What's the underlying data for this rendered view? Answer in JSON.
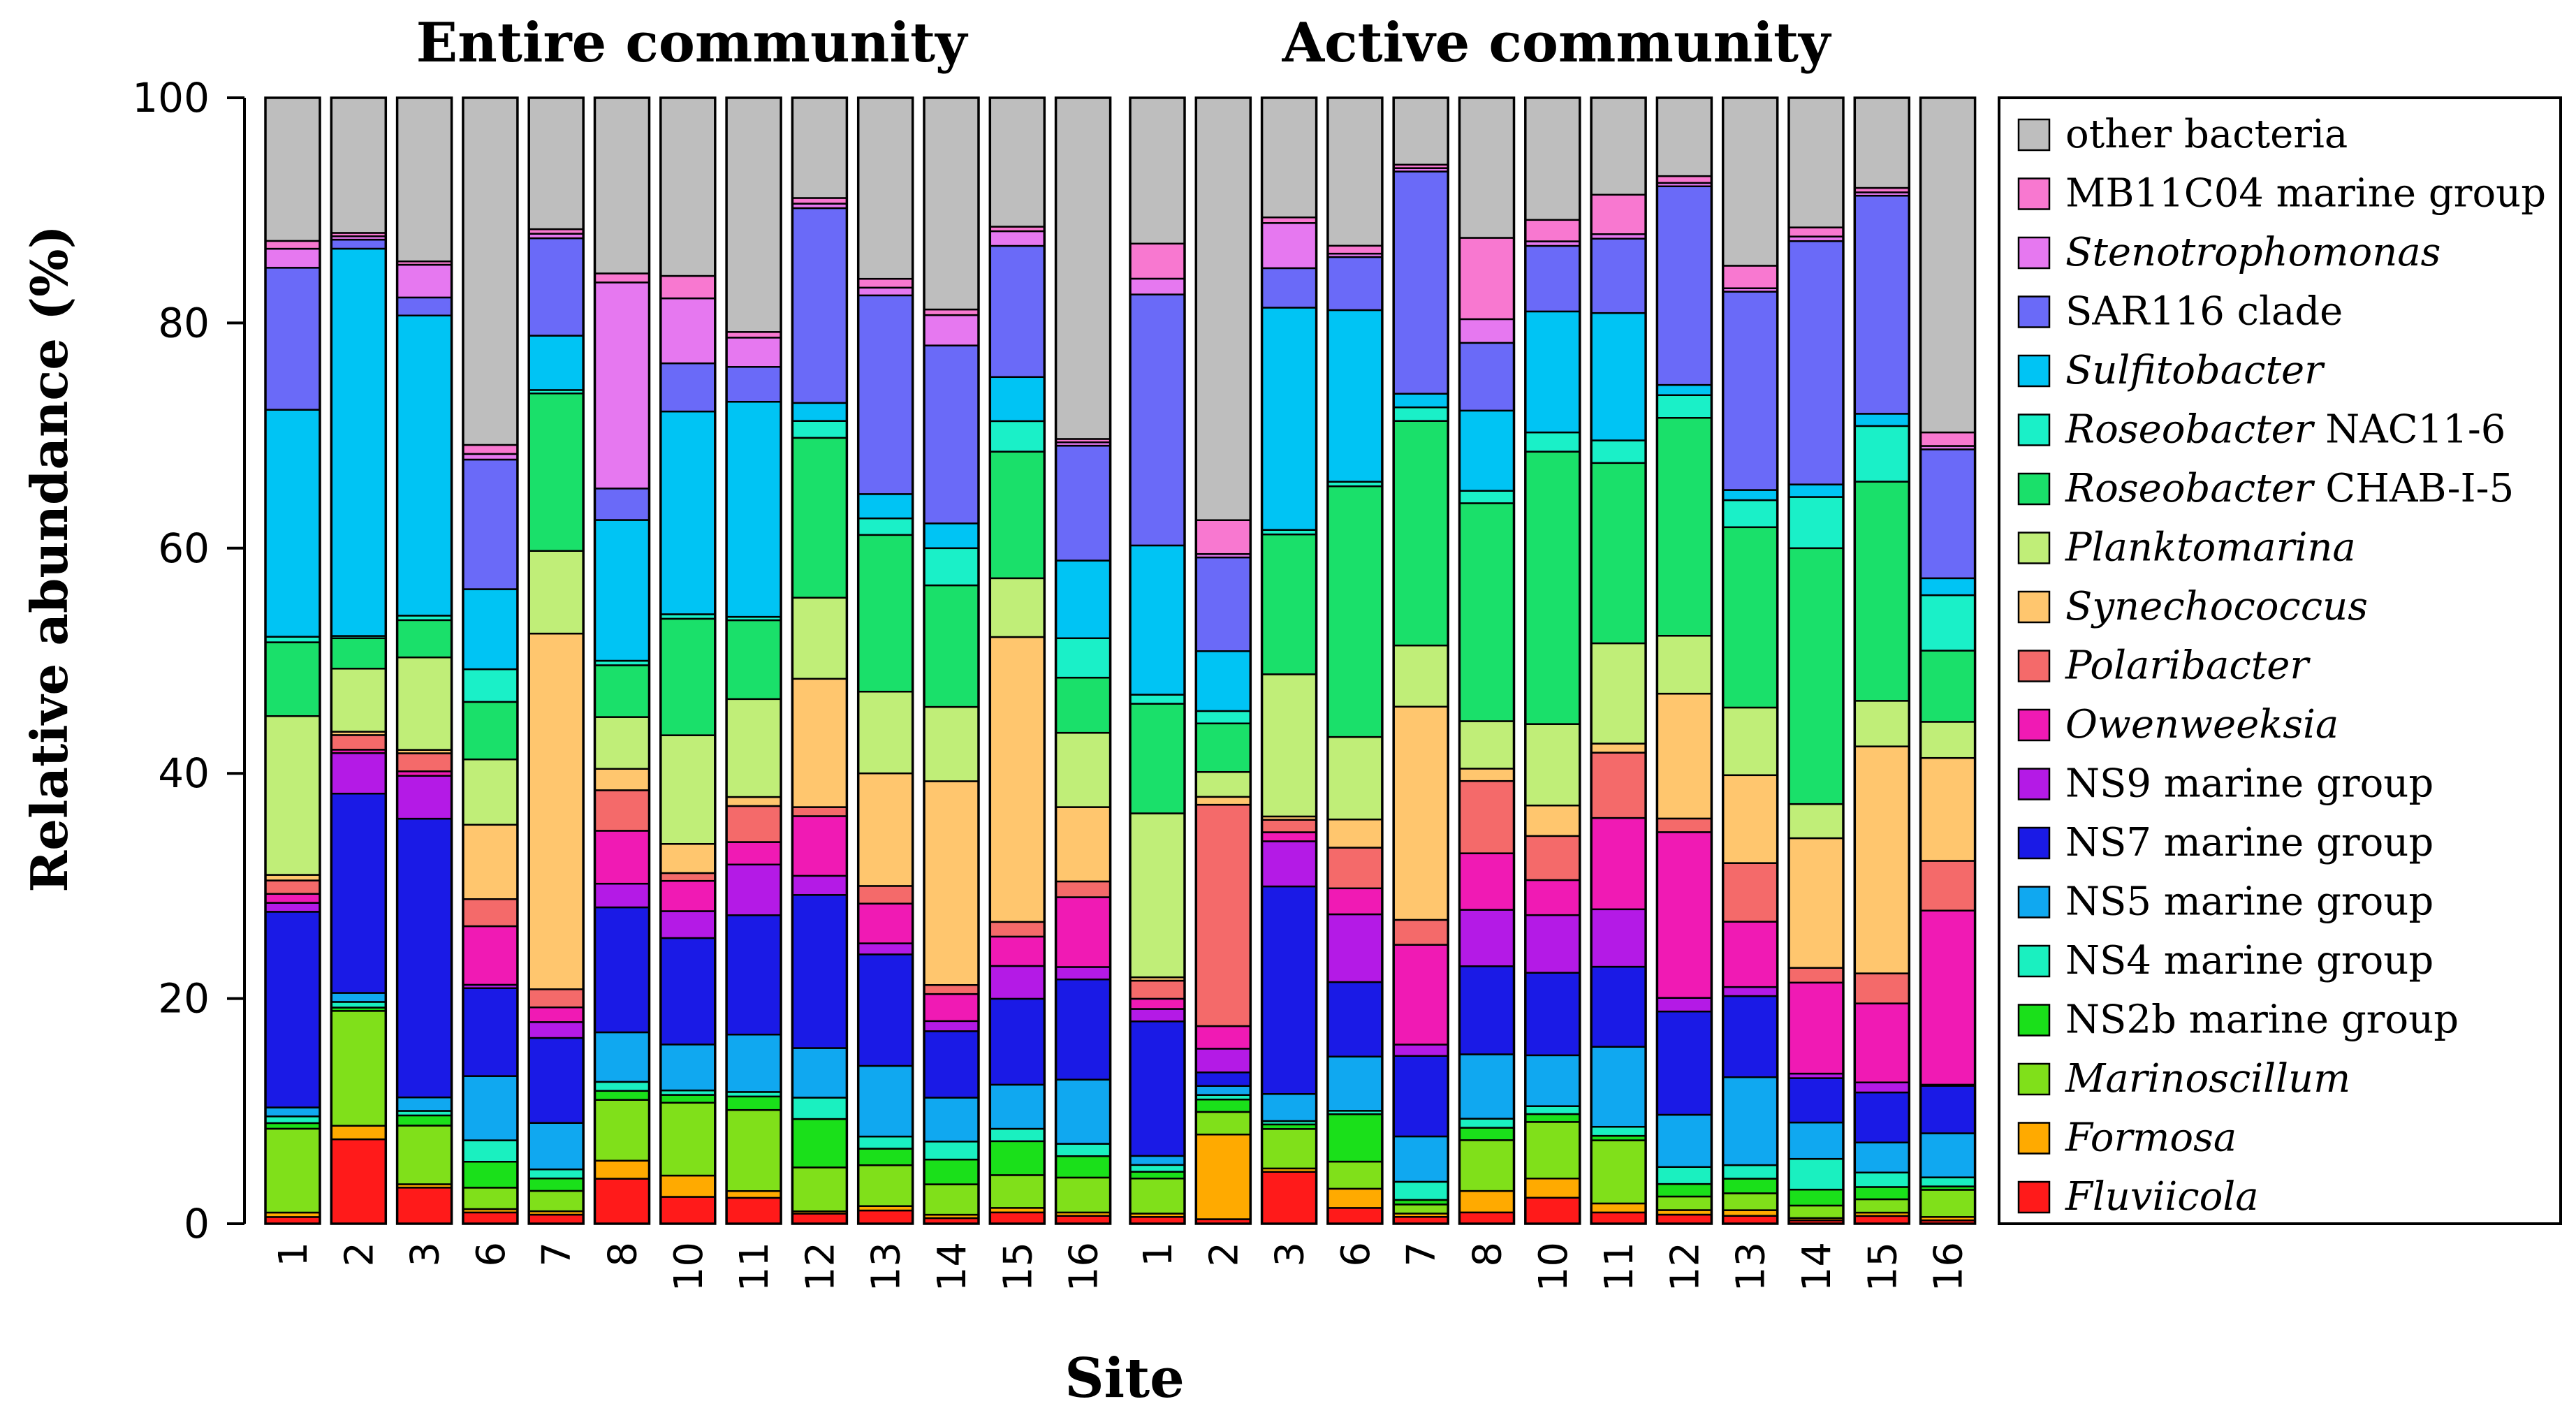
{
  "chart_data": {
    "type": "bar",
    "stacked": true,
    "ylabel": "Relative abundance (%)",
    "xlabel": "Site",
    "ylim": [
      0,
      100
    ],
    "yticks": [
      0,
      20,
      40,
      60,
      80,
      100
    ],
    "panels": [
      {
        "title": "Entire community",
        "categories": [
          "1",
          "2",
          "3",
          "6",
          "7",
          "8",
          "10",
          "11",
          "12",
          "13",
          "14",
          "15",
          "16"
        ]
      },
      {
        "title": "Active community",
        "categories": [
          "1",
          "2",
          "3",
          "6",
          "7",
          "8",
          "10",
          "11",
          "12",
          "13",
          "14",
          "15",
          "16"
        ]
      }
    ],
    "series": [
      {
        "name": "Fluviicola",
        "italic": true,
        "prefix": "",
        "suffix": "",
        "color": "#ff1a1a"
      },
      {
        "name": "Formosa",
        "italic": true,
        "prefix": "",
        "suffix": "",
        "color": "#ffaa00"
      },
      {
        "name": "Marinoscillum",
        "italic": true,
        "prefix": "",
        "suffix": "",
        "color": "#80e01a"
      },
      {
        "name": "NS2b marine group",
        "italic": false,
        "prefix": "",
        "suffix": "",
        "color": "#1ae01a"
      },
      {
        "name": "NS4 marine group",
        "italic": false,
        "prefix": "",
        "suffix": "",
        "color": "#1af0c0"
      },
      {
        "name": "NS5 marine group",
        "italic": false,
        "prefix": "",
        "suffix": "",
        "color": "#10a8f0"
      },
      {
        "name": "NS7 marine group",
        "italic": false,
        "prefix": "",
        "suffix": "",
        "color": "#1a1ae6"
      },
      {
        "name": "NS9 marine group",
        "italic": false,
        "prefix": "",
        "suffix": "",
        "color": "#b41ae6"
      },
      {
        "name": "Owenweeksia",
        "italic": true,
        "prefix": "",
        "suffix": "",
        "color": "#f01ab4"
      },
      {
        "name": "Polaribacter",
        "italic": true,
        "prefix": "",
        "suffix": "",
        "color": "#f46a6a"
      },
      {
        "name": "Synechococcus",
        "italic": true,
        "prefix": "",
        "suffix": "",
        "color": "#ffc66e"
      },
      {
        "name": "Planktomarina",
        "italic": true,
        "prefix": "",
        "suffix": "",
        "color": "#c0ee78"
      },
      {
        "name": "CHAB-I-5",
        "italic": false,
        "prefix": "Roseobacter",
        "suffix": " CHAB-I-5",
        "color": "#1ae06a"
      },
      {
        "name": "NAC11-6",
        "italic": false,
        "prefix": "Roseobacter",
        "suffix": " NAC11-6",
        "color": "#1af0c8"
      },
      {
        "name": "Sulfitobacter",
        "italic": true,
        "prefix": "",
        "suffix": "",
        "color": "#00c4f4"
      },
      {
        "name": "SAR116 clade",
        "italic": false,
        "prefix": "",
        "suffix": "",
        "color": "#6a6af8"
      },
      {
        "name": "Stenotrophomonas",
        "italic": true,
        "prefix": "",
        "suffix": "",
        "color": "#e678f0"
      },
      {
        "name": "MB11C04 marine group",
        "italic": false,
        "prefix": "",
        "suffix": "",
        "color": "#f878d0"
      },
      {
        "name": "other bacteria",
        "italic": false,
        "prefix": "",
        "suffix": "",
        "color": "#bebebe"
      }
    ],
    "bars": [
      {
        "panel": 0,
        "site": "1",
        "values": [
          0.6,
          0.4,
          7.5,
          0.5,
          0.6,
          0.8,
          17.5,
          0.8,
          0.8,
          1.2,
          0.5,
          14.2,
          6.6,
          0.5,
          20.3,
          12.7,
          1.7,
          0.7,
          12.8
        ]
      },
      {
        "panel": 0,
        "site": "2",
        "values": [
          7.5,
          1.2,
          10.2,
          0.3,
          0.5,
          0.8,
          17.7,
          3.6,
          0.3,
          1.3,
          0.3,
          5.6,
          2.7,
          0.2,
          34.4,
          0.8,
          0.3,
          0.3,
          12.0
        ]
      },
      {
        "panel": 0,
        "site": "3",
        "values": [
          3.2,
          0.3,
          5.2,
          0.9,
          0.4,
          1.2,
          24.7,
          3.8,
          0.4,
          1.6,
          0.3,
          8.2,
          3.3,
          0.4,
          26.6,
          1.6,
          2.9,
          0.3,
          14.5
        ]
      },
      {
        "panel": 0,
        "site": "6",
        "values": [
          1.0,
          0.3,
          1.9,
          2.3,
          1.9,
          5.7,
          7.8,
          0.3,
          5.2,
          2.4,
          6.6,
          5.8,
          5.1,
          2.9,
          7.1,
          11.5,
          0.5,
          0.8,
          30.8
        ]
      },
      {
        "panel": 0,
        "site": "7",
        "values": [
          0.8,
          0.3,
          1.8,
          1.1,
          0.8,
          4.1,
          7.5,
          1.4,
          1.3,
          1.6,
          31.4,
          7.3,
          13.9,
          0.3,
          4.8,
          8.6,
          0.4,
          0.4,
          11.6
        ]
      },
      {
        "panel": 0,
        "site": "8",
        "values": [
          4.0,
          1.6,
          5.4,
          0.8,
          0.8,
          4.4,
          11.1,
          2.1,
          4.7,
          3.6,
          1.9,
          4.6,
          4.6,
          0.4,
          12.5,
          2.8,
          18.3,
          0.8,
          15.6
        ]
      },
      {
        "panel": 0,
        "site": "10",
        "values": [
          2.4,
          1.9,
          6.5,
          0.7,
          0.4,
          4.1,
          9.5,
          2.4,
          2.7,
          0.7,
          2.6,
          9.7,
          10.4,
          0.4,
          18.1,
          4.3,
          5.8,
          2.0,
          15.9
        ]
      },
      {
        "panel": 0,
        "site": "11",
        "values": [
          2.3,
          0.6,
          7.2,
          1.2,
          0.4,
          5.1,
          10.6,
          4.5,
          2.0,
          3.2,
          0.8,
          8.7,
          7.0,
          0.3,
          19.1,
          3.1,
          2.6,
          0.5,
          20.8
        ]
      },
      {
        "panel": 0,
        "site": "12",
        "values": [
          0.9,
          0.2,
          3.9,
          4.3,
          1.9,
          4.4,
          13.6,
          1.7,
          5.3,
          0.8,
          11.4,
          7.2,
          14.2,
          1.5,
          1.6,
          17.3,
          0.4,
          0.5,
          8.9
        ]
      },
      {
        "panel": 0,
        "site": "13",
        "values": [
          1.2,
          0.4,
          3.7,
          1.5,
          1.1,
          6.4,
          10.1,
          1.0,
          3.6,
          1.6,
          10.2,
          7.4,
          14.2,
          1.5,
          2.2,
          18.0,
          0.7,
          0.8,
          16.4
        ]
      },
      {
        "panel": 0,
        "site": "14",
        "values": [
          0.5,
          0.3,
          2.7,
          2.2,
          1.6,
          3.9,
          5.9,
          0.9,
          2.4,
          0.8,
          18.1,
          6.6,
          10.8,
          3.3,
          2.2,
          15.8,
          2.7,
          0.5,
          18.8
        ]
      },
      {
        "panel": 0,
        "site": "15",
        "values": [
          1.0,
          0.4,
          2.9,
          3.0,
          1.1,
          3.9,
          7.6,
          2.9,
          2.6,
          1.3,
          25.2,
          5.2,
          11.2,
          2.7,
          3.9,
          11.6,
          1.3,
          0.4,
          11.4
        ]
      },
      {
        "panel": 0,
        "site": "16",
        "values": [
          0.7,
          0.3,
          3.1,
          1.9,
          1.1,
          5.7,
          8.9,
          1.1,
          6.2,
          1.4,
          6.6,
          6.6,
          4.9,
          3.5,
          6.9,
          10.2,
          0.3,
          0.3,
          30.3
        ]
      },
      {
        "panel": 1,
        "site": "1",
        "values": [
          0.6,
          0.3,
          3.1,
          0.6,
          0.6,
          0.8,
          11.9,
          1.1,
          0.9,
          1.6,
          0.3,
          14.5,
          9.7,
          0.8,
          13.2,
          22.2,
          1.4,
          3.1,
          12.9
        ]
      },
      {
        "panel": 1,
        "site": "2",
        "values": [
          0.4,
          7.5,
          2.0,
          1.1,
          0.4,
          0.8,
          1.2,
          2.1,
          2.0,
          19.6,
          0.7,
          2.2,
          4.3,
          1.1,
          5.3,
          8.3,
          0.3,
          3.0,
          37.4
        ]
      },
      {
        "panel": 1,
        "site": "3",
        "values": [
          4.6,
          0.3,
          3.5,
          0.4,
          0.3,
          2.4,
          18.4,
          4.0,
          0.8,
          1.1,
          0.3,
          12.6,
          12.4,
          0.4,
          19.7,
          3.5,
          4.0,
          0.5,
          10.6
        ]
      },
      {
        "panel": 1,
        "site": "6",
        "values": [
          1.4,
          1.7,
          2.4,
          4.2,
          0.3,
          4.8,
          6.6,
          6.0,
          2.3,
          3.6,
          2.5,
          7.3,
          22.2,
          0.4,
          15.2,
          4.7,
          0.3,
          0.7,
          13.1
        ]
      },
      {
        "panel": 1,
        "site": "7",
        "values": [
          0.6,
          0.3,
          0.8,
          0.4,
          1.6,
          4.0,
          7.1,
          1.0,
          8.8,
          2.2,
          18.8,
          5.4,
          19.8,
          1.2,
          1.2,
          19.6,
          0.3,
          0.3,
          5.9
        ]
      },
      {
        "panel": 1,
        "site": "8",
        "values": [
          1.0,
          1.9,
          4.5,
          1.1,
          0.8,
          5.7,
          7.8,
          5.0,
          5.0,
          6.4,
          1.1,
          4.2,
          19.3,
          1.1,
          7.1,
          6.0,
          2.1,
          7.2,
          12.4
        ]
      },
      {
        "panel": 1,
        "site": "10",
        "values": [
          2.3,
          1.7,
          5.0,
          0.7,
          0.7,
          4.5,
          7.3,
          5.1,
          3.1,
          3.9,
          2.7,
          7.2,
          24.1,
          1.7,
          10.7,
          5.8,
          0.4,
          1.9,
          10.8
        ]
      },
      {
        "panel": 1,
        "site": "11",
        "values": [
          1.0,
          0.8,
          5.6,
          0.4,
          0.8,
          7.1,
          7.1,
          5.1,
          8.1,
          5.8,
          0.8,
          8.9,
          16.0,
          2.0,
          11.3,
          6.6,
          0.4,
          3.5,
          8.6
        ]
      },
      {
        "panel": 1,
        "site": "12",
        "values": [
          0.8,
          0.4,
          1.2,
          1.1,
          1.5,
          4.6,
          9.1,
          1.2,
          14.6,
          1.2,
          11.0,
          5.1,
          19.2,
          2.0,
          0.9,
          17.5,
          0.3,
          0.6,
          6.9
        ]
      },
      {
        "panel": 1,
        "site": "13",
        "values": [
          0.7,
          0.5,
          1.5,
          1.3,
          1.2,
          7.8,
          7.2,
          0.8,
          5.8,
          5.2,
          7.8,
          6.0,
          16.0,
          2.4,
          0.9,
          17.6,
          0.3,
          2.0,
          14.9
        ]
      },
      {
        "panel": 1,
        "site": "14",
        "values": [
          0.3,
          0.2,
          1.1,
          1.4,
          2.7,
          3.2,
          3.9,
          0.4,
          8.0,
          1.3,
          11.4,
          3.0,
          22.5,
          4.5,
          1.1,
          21.4,
          0.4,
          0.8,
          11.4
        ]
      },
      {
        "panel": 1,
        "site": "15",
        "values": [
          0.7,
          0.3,
          1.2,
          1.1,
          1.3,
          2.7,
          4.5,
          0.9,
          7.1,
          2.7,
          20.4,
          4.1,
          19.7,
          5.0,
          1.1,
          19.6,
          0.3,
          0.4,
          8.1
        ]
      },
      {
        "panel": 1,
        "site": "16",
        "values": [
          0.3,
          0.3,
          2.4,
          0.3,
          0.8,
          3.9,
          4.2,
          0.1,
          15.4,
          4.4,
          9.1,
          3.2,
          6.3,
          4.9,
          1.5,
          11.4,
          0.3,
          1.2,
          29.6
        ]
      }
    ]
  }
}
